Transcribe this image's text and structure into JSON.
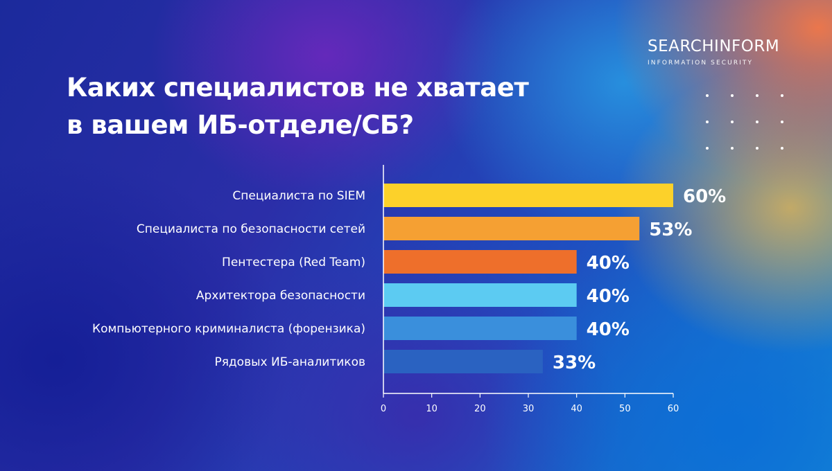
{
  "brand": {
    "name": "SEARCHINFORM",
    "tagline": "INFORMATION SECURITY"
  },
  "chart_data": {
    "type": "bar",
    "orientation": "horizontal",
    "title_lines": [
      "Каких специалистов не хватает",
      "в вашем ИБ-отделе/СБ?"
    ],
    "categories": [
      "Специалиста по SIEM",
      "Специалиста по безопасности сетей",
      "Пентестера (Red Team)",
      "Архитектора безопасности",
      "Компьютерного криминалиста (форензика)",
      "Рядовых ИБ-аналитиков"
    ],
    "values": [
      60,
      53,
      40,
      40,
      40,
      33
    ],
    "value_labels": [
      "60%",
      "53%",
      "40%",
      "40%",
      "40%",
      "33%"
    ],
    "bar_colors": [
      "#fcd12a",
      "#f5a033",
      "#ee6f2b",
      "#5ccbf2",
      "#3a8fdc",
      "#2a62c1"
    ],
    "xlim": [
      0,
      60
    ],
    "xticks": [
      0,
      10,
      20,
      30,
      40,
      50,
      60
    ],
    "grid": false,
    "legend": "none",
    "xlabel": "",
    "ylabel": ""
  }
}
